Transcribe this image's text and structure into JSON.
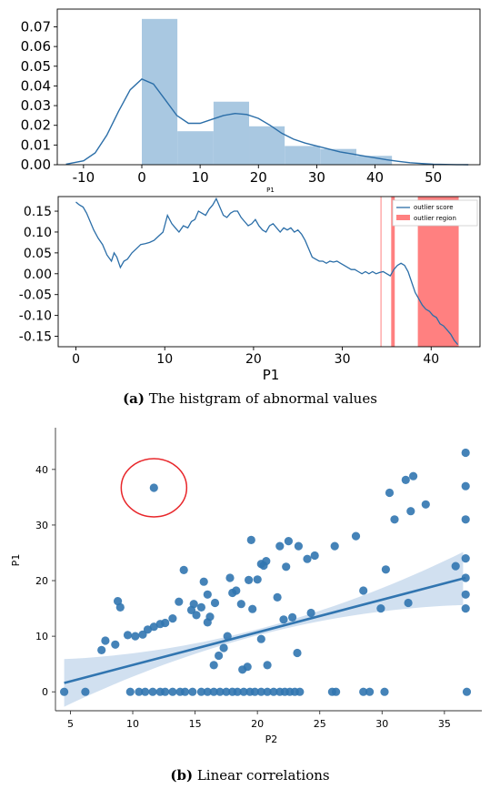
{
  "chart_data": [
    {
      "type": "bar",
      "subtype": "histogram-with-kde",
      "xlabel": "P1",
      "xlim": [
        -14.5,
        58
      ],
      "ylim": [
        0,
        0.079
      ],
      "x_ticks": [
        -10,
        0,
        10,
        20,
        30,
        40,
        50
      ],
      "y_ticks": [
        0.0,
        0.01,
        0.02,
        0.03,
        0.04,
        0.05,
        0.06,
        0.07
      ],
      "y_tick_labels": [
        "0.00",
        "0.01",
        "0.02",
        "0.03",
        "0.04",
        "0.05",
        "0.06",
        "0.07"
      ],
      "bins": [
        {
          "x0": 0.0,
          "x1": 6.1,
          "density": 0.074
        },
        {
          "x0": 6.1,
          "x1": 12.3,
          "density": 0.017
        },
        {
          "x0": 12.3,
          "x1": 18.4,
          "density": 0.032
        },
        {
          "x0": 18.4,
          "x1": 24.5,
          "density": 0.0195
        },
        {
          "x0": 24.5,
          "x1": 30.6,
          "density": 0.0095
        },
        {
          "x0": 30.6,
          "x1": 36.8,
          "density": 0.008
        },
        {
          "x0": 36.8,
          "x1": 42.9,
          "density": 0.0045
        }
      ],
      "kde": {
        "x": [
          -13,
          -10,
          -8,
          -6,
          -4,
          -2,
          0,
          2,
          4,
          6,
          8,
          10,
          12,
          14,
          16,
          18,
          20,
          22,
          24,
          26,
          28,
          30,
          32,
          34,
          36,
          38,
          40,
          42,
          44,
          46,
          48,
          50,
          52,
          54,
          56
        ],
        "y": [
          0.0003,
          0.002,
          0.006,
          0.015,
          0.027,
          0.038,
          0.0435,
          0.041,
          0.033,
          0.025,
          0.021,
          0.021,
          0.023,
          0.025,
          0.026,
          0.0255,
          0.0235,
          0.02,
          0.016,
          0.013,
          0.011,
          0.0095,
          0.008,
          0.0065,
          0.0055,
          0.0045,
          0.0035,
          0.0025,
          0.0017,
          0.001,
          0.0006,
          0.0003,
          0.00015,
          5e-05,
          0.0
        ]
      },
      "colors": {
        "bar": "#a9c8e1",
        "kde": "#2b6ea8"
      }
    },
    {
      "type": "line",
      "xlabel": "P1",
      "xlim": [
        -2,
        45.5
      ],
      "ylim": [
        -0.175,
        0.185
      ],
      "x_ticks": [
        0,
        10,
        20,
        30,
        40
      ],
      "y_ticks": [
        -0.15,
        -0.1,
        -0.05,
        0.0,
        0.05,
        0.1,
        0.15
      ],
      "y_tick_labels": [
        "-0.15",
        "-0.10",
        "-0.05",
        "0.00",
        "0.05",
        "0.10",
        "0.15"
      ],
      "legend": [
        "outlier score",
        "outlier region"
      ],
      "legend_position": "top-right",
      "series": [
        {
          "name": "outlier score",
          "x": [
            0,
            0.4,
            0.8,
            1.2,
            1.6,
            2.0,
            2.5,
            3.0,
            3.5,
            4.0,
            4.3,
            4.6,
            5.0,
            5.4,
            5.8,
            6.3,
            6.8,
            7.3,
            7.8,
            8.3,
            8.8,
            9.3,
            9.8,
            10.3,
            10.8,
            11.2,
            11.6,
            12.1,
            12.6,
            13.0,
            13.4,
            13.8,
            14.2,
            14.6,
            15.0,
            15.4,
            15.8,
            16.2,
            16.6,
            17.0,
            17.4,
            17.8,
            18.2,
            18.6,
            19.0,
            19.4,
            19.8,
            20.2,
            20.6,
            21.0,
            21.4,
            21.8,
            22.2,
            22.6,
            23.0,
            23.4,
            23.8,
            24.2,
            24.6,
            25.0,
            25.4,
            25.8,
            26.2,
            26.6,
            27.0,
            27.4,
            27.8,
            28.2,
            28.6,
            29.0,
            29.4,
            29.8,
            30.2,
            30.6,
            31.0,
            31.4,
            31.8,
            32.2,
            32.6,
            33.0,
            33.4,
            33.8,
            34.2,
            34.6,
            35.0,
            35.4,
            35.8,
            36.2,
            36.6,
            37.0,
            37.4,
            37.8,
            38.2,
            38.6,
            39.0,
            39.4,
            39.8,
            40.2,
            40.6,
            41.0,
            41.4,
            41.8,
            42.2,
            42.6,
            43.0
          ],
          "y": [
            0.172,
            0.165,
            0.16,
            0.145,
            0.125,
            0.105,
            0.085,
            0.07,
            0.045,
            0.03,
            0.05,
            0.04,
            0.015,
            0.03,
            0.035,
            0.05,
            0.06,
            0.07,
            0.072,
            0.075,
            0.08,
            0.09,
            0.1,
            0.14,
            0.12,
            0.11,
            0.1,
            0.115,
            0.11,
            0.125,
            0.13,
            0.15,
            0.145,
            0.14,
            0.155,
            0.165,
            0.18,
            0.16,
            0.14,
            0.135,
            0.145,
            0.15,
            0.15,
            0.135,
            0.125,
            0.115,
            0.12,
            0.13,
            0.115,
            0.105,
            0.1,
            0.115,
            0.12,
            0.11,
            0.1,
            0.11,
            0.105,
            0.11,
            0.1,
            0.105,
            0.095,
            0.08,
            0.06,
            0.04,
            0.035,
            0.03,
            0.03,
            0.025,
            0.03,
            0.028,
            0.03,
            0.025,
            0.02,
            0.015,
            0.01,
            0.01,
            0.005,
            0.0,
            0.005,
            0.0,
            0.005,
            0.0,
            0.003,
            0.005,
            0.0,
            -0.005,
            0.01,
            0.02,
            0.025,
            0.02,
            0.005,
            -0.02,
            -0.045,
            -0.06,
            -0.075,
            -0.085,
            -0.09,
            -0.1,
            -0.105,
            -0.12,
            -0.125,
            -0.135,
            -0.145,
            -0.16,
            -0.17
          ]
        }
      ],
      "outlier_regions": [
        [
          34.3,
          34.4
        ],
        [
          35.5,
          35.9
        ],
        [
          38.5,
          43.1
        ]
      ],
      "colors": {
        "line": "#2b6ea8",
        "region": "#ff8080"
      }
    },
    {
      "type": "scatter",
      "xlabel": "P2",
      "ylabel": "P1",
      "xlim": [
        3.8,
        38
      ],
      "ylim": [
        -3.4,
        47.5
      ],
      "x_ticks": [
        5,
        10,
        15,
        20,
        25,
        30,
        35
      ],
      "y_ticks": [
        0,
        10,
        20,
        30,
        40
      ],
      "points": [
        [
          4.5,
          0
        ],
        [
          6.2,
          0
        ],
        [
          9.8,
          0
        ],
        [
          10.5,
          0
        ],
        [
          11.0,
          0
        ],
        [
          11.6,
          0
        ],
        [
          12.2,
          0
        ],
        [
          12.6,
          0
        ],
        [
          13.2,
          0
        ],
        [
          13.8,
          0
        ],
        [
          14.2,
          0
        ],
        [
          14.8,
          0
        ],
        [
          15.5,
          0
        ],
        [
          16.0,
          0
        ],
        [
          16.5,
          0
        ],
        [
          17.0,
          0
        ],
        [
          17.5,
          0
        ],
        [
          18.0,
          0
        ],
        [
          18.4,
          0
        ],
        [
          18.9,
          0
        ],
        [
          19.4,
          0
        ],
        [
          19.8,
          0
        ],
        [
          20.3,
          0
        ],
        [
          20.8,
          0
        ],
        [
          21.3,
          0
        ],
        [
          21.8,
          0
        ],
        [
          22.2,
          0
        ],
        [
          22.6,
          0
        ],
        [
          23.0,
          0
        ],
        [
          23.4,
          0
        ],
        [
          26.0,
          0
        ],
        [
          26.3,
          0
        ],
        [
          28.5,
          0
        ],
        [
          29.0,
          0
        ],
        [
          30.2,
          0
        ],
        [
          36.8,
          0
        ],
        [
          7.5,
          7.5
        ],
        [
          7.8,
          9.2
        ],
        [
          8.6,
          8.5
        ],
        [
          8.8,
          16.3
        ],
        [
          9.0,
          15.2
        ],
        [
          9.6,
          10.2
        ],
        [
          10.2,
          10.0
        ],
        [
          10.8,
          10.3
        ],
        [
          11.2,
          11.2
        ],
        [
          11.7,
          11.7
        ],
        [
          12.2,
          12.2
        ],
        [
          12.6,
          12.4
        ],
        [
          13.2,
          13.2
        ],
        [
          13.7,
          16.2
        ],
        [
          14.1,
          21.9
        ],
        [
          14.7,
          14.7
        ],
        [
          14.9,
          15.8
        ],
        [
          15.1,
          13.8
        ],
        [
          15.5,
          15.2
        ],
        [
          15.7,
          19.8
        ],
        [
          16.0,
          17.5
        ],
        [
          16.0,
          12.5
        ],
        [
          16.2,
          13.5
        ],
        [
          16.6,
          16.0
        ],
        [
          16.5,
          4.8
        ],
        [
          16.9,
          6.5
        ],
        [
          17.3,
          7.9
        ],
        [
          17.6,
          10.0
        ],
        [
          17.8,
          20.5
        ],
        [
          18.0,
          17.8
        ],
        [
          18.3,
          18.2
        ],
        [
          18.7,
          15.8
        ],
        [
          18.8,
          4.0
        ],
        [
          19.2,
          4.5
        ],
        [
          19.3,
          20.1
        ],
        [
          19.5,
          27.3
        ],
        [
          19.6,
          14.9
        ],
        [
          20.0,
          20.2
        ],
        [
          20.3,
          23.0
        ],
        [
          20.3,
          9.5
        ],
        [
          20.5,
          22.7
        ],
        [
          20.7,
          23.5
        ],
        [
          20.8,
          4.8
        ],
        [
          21.6,
          17.0
        ],
        [
          21.8,
          26.2
        ],
        [
          22.1,
          13.0
        ],
        [
          22.3,
          22.5
        ],
        [
          22.5,
          27.1
        ],
        [
          22.8,
          13.4
        ],
        [
          23.3,
          26.2
        ],
        [
          23.2,
          7.0
        ],
        [
          24.0,
          23.9
        ],
        [
          24.3,
          14.2
        ],
        [
          24.6,
          24.5
        ],
        [
          26.2,
          26.2
        ],
        [
          27.9,
          28.0
        ],
        [
          28.5,
          18.2
        ],
        [
          29.9,
          15.0
        ],
        [
          30.3,
          22.0
        ],
        [
          30.6,
          35.8
        ],
        [
          31.0,
          31.0
        ],
        [
          31.9,
          38.1
        ],
        [
          32.1,
          16.0
        ],
        [
          32.3,
          32.5
        ],
        [
          32.5,
          38.8
        ],
        [
          33.5,
          33.7
        ],
        [
          35.9,
          22.6
        ],
        [
          36.7,
          43.0
        ],
        [
          36.7,
          37.0
        ],
        [
          36.7,
          31.0
        ],
        [
          36.7,
          24.0
        ],
        [
          36.7,
          20.5
        ],
        [
          36.7,
          17.5
        ],
        [
          36.7,
          15.0
        ],
        [
          11.7,
          36.7
        ]
      ],
      "regression": {
        "x0": 4.5,
        "y0": 1.6,
        "x1": 36.7,
        "y1": 20.5
      },
      "outlier_circle": {
        "x": 11.7,
        "y": 36.7
      },
      "colors": {
        "points": "#3175b0",
        "line": "#3175b0",
        "band": "#c9daed",
        "circle": "#e8262a"
      }
    }
  ],
  "captions": {
    "a": {
      "label": "(a)",
      "text": " The histgram of abnormal values"
    },
    "b": {
      "label": "(b)",
      "text": " Linear correlations"
    }
  }
}
